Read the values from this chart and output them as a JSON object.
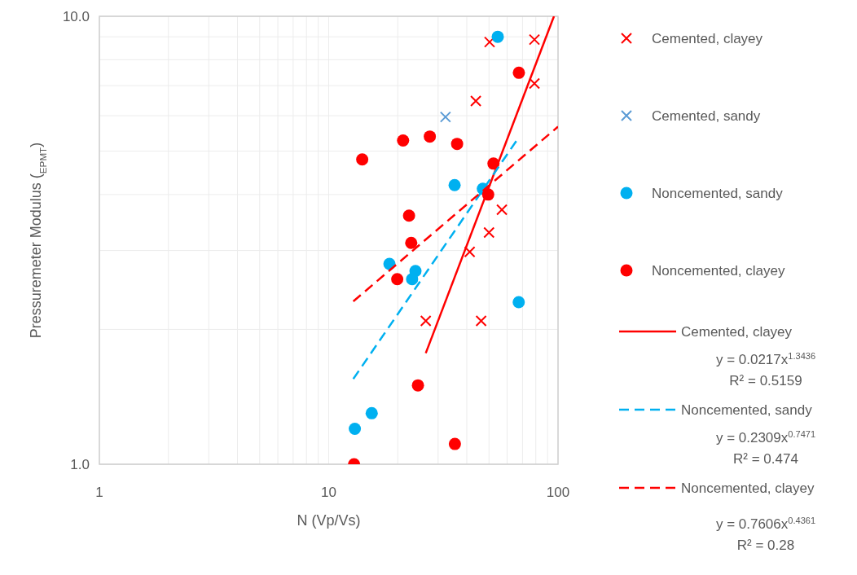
{
  "chart_data": {
    "type": "scatter",
    "xlabel": "N (Vp/Vs)",
    "ylabel": "Pressuremeter Modulus ($_{EPMT}$)",
    "log": "xy",
    "grid": true,
    "legend": "right",
    "xlim": [
      1,
      100
    ],
    "ylim": [
      1,
      10
    ],
    "xticks": [
      1,
      {
        "value": 2,
        "label": null
      },
      {
        "value": 3,
        "label": null
      },
      {
        "value": 4,
        "label": null
      },
      {
        "value": 5,
        "label": null
      },
      {
        "value": 6,
        "label": null
      },
      {
        "value": 7,
        "label": null
      },
      {
        "value": 8,
        "label": null
      },
      {
        "value": 9,
        "label": null
      },
      10,
      {
        "value": 20,
        "label": null
      },
      {
        "value": 30,
        "label": null
      },
      {
        "value": 40,
        "label": null
      },
      {
        "value": 50,
        "label": null
      },
      {
        "value": 60,
        "label": null
      },
      {
        "value": 70,
        "label": null
      },
      {
        "value": 80,
        "label": null
      },
      {
        "value": 90,
        "label": null
      },
      100
    ],
    "yticks": [
      {
        "value": 1,
        "label": "1.0"
      },
      {
        "value": 2,
        "label": null
      },
      {
        "value": 3,
        "label": null
      },
      {
        "value": 4,
        "label": null
      },
      {
        "value": 5,
        "label": null
      },
      {
        "value": 6,
        "label": null
      },
      {
        "value": 7,
        "label": null
      },
      {
        "value": 8,
        "label": null
      },
      {
        "value": 9,
        "label": null
      },
      {
        "value": 10,
        "label": "10.0"
      }
    ],
    "series": [
      {
        "name": "Cemented, clayey",
        "marker": "cross",
        "color": "#ff0000",
        "x": [
          50.3,
          78.9,
          78.9,
          43.8,
          56.9,
          50.0,
          41.2,
          26.5,
          46.2
        ],
        "values": [
          8.76,
          8.87,
          7.08,
          6.47,
          3.7,
          3.29,
          2.98,
          2.09,
          2.09
        ]
      },
      {
        "name": "Cemented, sandy",
        "marker": "cross",
        "color": "#5b9bd5",
        "x": [
          32.3
        ],
        "values": [
          5.96
        ]
      },
      {
        "name": "Noncemented, sandy",
        "marker": "circle",
        "color": "#00b0f0",
        "x": [
          54.6,
          35.4,
          47.0,
          18.4,
          23.9,
          23.1,
          67.4,
          15.4,
          13.0
        ],
        "values": [
          9.0,
          4.2,
          4.12,
          2.8,
          2.7,
          2.59,
          2.3,
          1.3,
          1.2
        ]
      },
      {
        "name": "Noncemented, clayey",
        "marker": "circle",
        "color": "#ff0000",
        "x": [
          67.5,
          14.0,
          21.1,
          27.6,
          36.3,
          52.3,
          49.6,
          22.4,
          22.9,
          19.9,
          24.5,
          35.5,
          12.9
        ],
        "values": [
          7.48,
          4.79,
          5.28,
          5.39,
          5.19,
          4.69,
          4.0,
          3.59,
          3.12,
          2.59,
          1.5,
          1.11,
          1.0
        ]
      },
      {
        "name": "Cemented, clayey",
        "type": "line",
        "line_style": "solid",
        "color": "#ff0000",
        "x": [
          26.5,
          96
        ],
        "values": [
          1.77,
          10
        ]
      },
      {
        "name": "Noncemented, sandy",
        "type": "line",
        "line_style": "dashed",
        "color": "#00b0f0",
        "x": [
          12.8,
          67
        ],
        "values": [
          1.55,
          5.34
        ]
      },
      {
        "name": "Noncemented, clayey",
        "type": "line",
        "line_style": "dashed",
        "color": "#ff0000",
        "x": [
          12.8,
          100
        ],
        "values": [
          2.31,
          5.67
        ]
      }
    ],
    "annotations": [
      "y = 0.0217x$^{1.3436}$",
      "R² = 0.5159",
      "y = 0.2309x$^{0.7471}$",
      "R² = 0.474",
      "y = 0.7606x$^{0.4361}$",
      "R² = 0.28"
    ]
  }
}
